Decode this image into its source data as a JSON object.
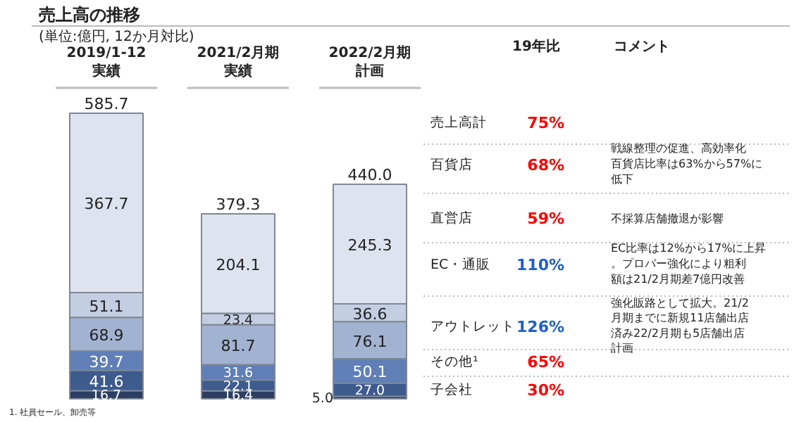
{
  "chart_data": {
    "type": "bar",
    "stacked": true,
    "title": "売上高の推移",
    "subtitle": "(単位:億円, 12か月対比)",
    "categories": [
      "2019/1-12実績",
      "2021/2月期実績",
      "2022/2月期計画"
    ],
    "series": [
      {
        "name": "子会社",
        "color": "#2c3f62",
        "values": [
          16.7,
          16.4,
          5.0
        ],
        "value_labels": [
          "16.7",
          "16.4",
          "5.0"
        ]
      },
      {
        "name": "その他¹",
        "color": "#3e5b8e",
        "values": [
          41.6,
          22.1,
          27.0
        ],
        "value_labels": [
          "41.6",
          "22.1",
          "27.0"
        ]
      },
      {
        "name": "アウトレット",
        "color": "#5f7fb6",
        "values": [
          39.7,
          31.6,
          50.1
        ],
        "value_labels": [
          "39.7",
          "31.6",
          "50.1"
        ]
      },
      {
        "name": "EC・通販",
        "color": "#a2b3d1",
        "values": [
          68.9,
          81.7,
          76.1
        ],
        "value_labels": [
          "68.9",
          "81.7",
          "76.1"
        ]
      },
      {
        "name": "直営店",
        "color": "#c3cee2",
        "values": [
          51.1,
          23.4,
          36.6
        ],
        "value_labels": [
          "51.1",
          "23.4",
          "36.6"
        ]
      },
      {
        "name": "百貨店",
        "color": "#dee4ef",
        "values": [
          367.7,
          204.1,
          245.3
        ],
        "value_labels": [
          "367.7",
          "204.1",
          "245.3"
        ]
      }
    ],
    "totals": [
      "585.7",
      "379.3",
      "440.0"
    ],
    "grid": false,
    "annotations": [
      "19年比",
      "コメント",
      "売上高計",
      "75%",
      "68%",
      "59%",
      "110%",
      "126%",
      "65%",
      "30%",
      "戦線整理の促進、高効率化百貨店比率は63%から57%に低下",
      "不採算店舗撤退が影響",
      "EC比率は12%から17%に上昇。プロパー強化により粗利額は21/2月期差7億円改善",
      "強化販路として拡大。21/2月期までに新規11店舗出店済み22/2月期も5店舗出店計画",
      "1. 社員セール、卸売等"
    ]
  }
}
